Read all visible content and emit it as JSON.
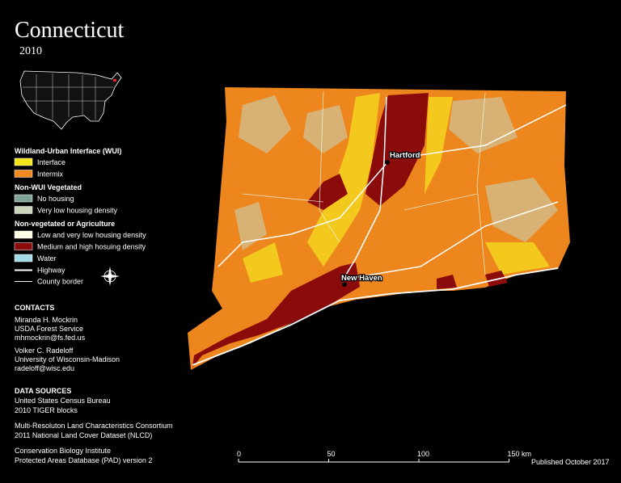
{
  "header": {
    "title": "Connecticut",
    "year": "2010"
  },
  "legend": {
    "sections": [
      {
        "heading": "Wildland-Urban Interface (WUI)",
        "items": [
          {
            "label": "Interface",
            "color": "#f5e61c"
          },
          {
            "label": "Intermix",
            "color": "#f08a1f"
          }
        ]
      },
      {
        "heading": "Non-WUI Vegetated",
        "items": [
          {
            "label": "No housing",
            "color": "#7ea596"
          },
          {
            "label": "Very low housing density",
            "color": "#c9d6bb"
          }
        ]
      },
      {
        "heading": "Non-vegetated or Agriculture",
        "items": [
          {
            "label": "Low and very low housing density",
            "color": "#fffbe3"
          },
          {
            "label": "Medium and high hosuing density",
            "color": "#8b0a0a"
          },
          {
            "label": "Water",
            "color": "#a4dbe8"
          }
        ]
      }
    ],
    "lines": [
      {
        "label": "Highway"
      },
      {
        "label": "County border"
      }
    ]
  },
  "contacts": {
    "heading": "CONTACTS",
    "people": [
      [
        "Miranda H. Mockrin",
        "USDA Forest Service",
        "mhmockrin@fs.fed.us"
      ],
      [
        "Volker C. Radeloff",
        "University of Wisconsin-Madison",
        "radeloff@wisc.edu"
      ]
    ]
  },
  "data_sources": {
    "heading": "DATA SOURCES",
    "sources": [
      [
        "United States Census Bureau",
        "2010 TIGER blocks"
      ],
      [
        "Multi-Resoluton Land Characteristics Consortium",
        "2011 National Land Cover Dataset (NLCD)"
      ],
      [
        "Conservation Biology Institute",
        "Protected Areas Database (PAD) version 2"
      ]
    ]
  },
  "map": {
    "cities": [
      "Hartford",
      "New Haven"
    ]
  },
  "scale": {
    "labels": [
      "0",
      "50",
      "100",
      "150 km"
    ]
  },
  "published": "Published October 2017"
}
